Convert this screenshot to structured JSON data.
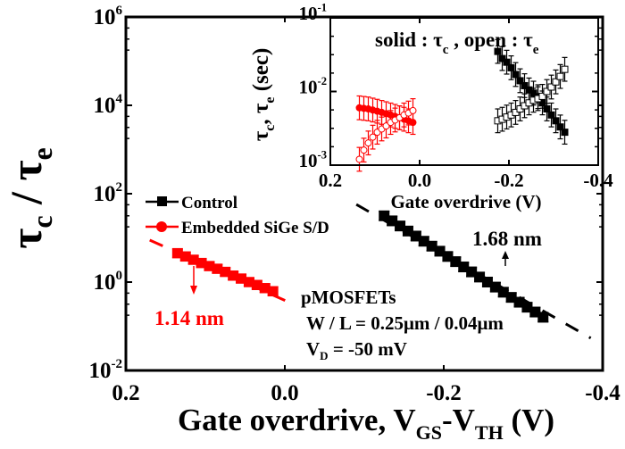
{
  "chart_data": [
    {
      "type": "scatter",
      "xlabel": {
        "main": "Gate overdrive, V",
        "sub1": "GS",
        "mid": "-V",
        "sub2": "TH",
        "end": " (V)"
      },
      "ylabel": {
        "tau1": "τ",
        "sub1": "c",
        "slash": " / ",
        "tau2": "τ",
        "sub2": "e"
      },
      "xlim": [
        0.2,
        -0.4
      ],
      "ylim": [
        0.01,
        1000000
      ],
      "yscale": "log",
      "xticks": [
        "0.2",
        "0.0",
        "-0.2",
        "-0.4"
      ],
      "xtick_values": [
        0.2,
        0.0,
        -0.2,
        -0.4
      ],
      "yticks": [
        {
          "base": "10",
          "exp": "6"
        },
        {
          "base": "10",
          "exp": "4"
        },
        {
          "base": "10",
          "exp": "2"
        },
        {
          "base": "10",
          "exp": "0"
        },
        {
          "base": "10",
          "exp": "-2"
        }
      ],
      "ytick_values": [
        1000000,
        10000,
        100,
        1,
        0.01
      ],
      "legend_placement": "left-middle",
      "series": [
        {
          "name": "Control",
          "color": "#000000",
          "marker": "square",
          "x": [
            -0.125,
            -0.135,
            -0.145,
            -0.155,
            -0.165,
            -0.175,
            -0.185,
            -0.195,
            -0.205,
            -0.215,
            -0.225,
            -0.235,
            -0.245,
            -0.255,
            -0.265,
            -0.275,
            -0.285,
            -0.295,
            -0.305,
            -0.315,
            -0.325
          ],
          "y": [
            31.6,
            24.3,
            18.6,
            14.3,
            11.0,
            8.4,
            6.5,
            5.0,
            3.8,
            2.9,
            2.2,
            1.7,
            1.3,
            1.0,
            0.77,
            0.59,
            0.45,
            0.35,
            0.27,
            0.21,
            0.16
          ]
        },
        {
          "name": "Embedded SiGe S/D",
          "color": "#ff0000",
          "marker": "circle",
          "x": [
            0.135,
            0.125,
            0.115,
            0.105,
            0.095,
            0.085,
            0.075,
            0.065,
            0.055,
            0.045,
            0.035,
            0.025,
            0.015
          ],
          "y": [
            4.5,
            3.8,
            3.2,
            2.7,
            2.3,
            2.0,
            1.7,
            1.4,
            1.2,
            1.0,
            0.86,
            0.73,
            0.62
          ]
        }
      ],
      "fit_lines": [
        {
          "color": "#000000",
          "x": [
            -0.09,
            -0.385
          ],
          "y": [
            57,
            0.054
          ]
        },
        {
          "color": "#ff0000",
          "x": [
            0.17,
            -0.01
          ],
          "y": [
            8.9,
            0.32
          ]
        }
      ],
      "annotations": {
        "red_thickness": "1.14 nm",
        "black_thickness": "1.68 nm",
        "device": "pMOSFETs",
        "wl": "W / L = 0.25μm / 0.04μm",
        "vd_main": "V",
        "vd_sub": "D",
        "vd_rest": " = -50 mV"
      }
    },
    {
      "type": "scatter",
      "title": {
        "p1": "solid : τ",
        "s1": "c",
        "p2": " , open : τ",
        "s2": "e"
      },
      "xlabel": "Gate overdrive (V)",
      "ylabel": {
        "t1": "τ",
        "s1": "c",
        "c": ", τ",
        "s2": "e",
        "rest": " (sec)"
      },
      "xlim": [
        0.2,
        -0.4
      ],
      "ylim": [
        0.001,
        0.1
      ],
      "yscale": "log",
      "xticks": [
        "0.2",
        "0.0",
        "-0.2",
        "-0.4"
      ],
      "xtick_values": [
        0.2,
        0.0,
        -0.2,
        -0.4
      ],
      "yticks": [
        {
          "base": "10",
          "exp": "-1"
        },
        {
          "base": "10",
          "exp": "-2"
        },
        {
          "base": "10",
          "exp": "-3"
        }
      ],
      "ytick_values": [
        0.1,
        0.01,
        0.001
      ],
      "series": [
        {
          "color": "#ff0000",
          "marker": "circle",
          "fill": "solid",
          "x": [
            0.135,
            0.125,
            0.115,
            0.105,
            0.095,
            0.085,
            0.075,
            0.065,
            0.055,
            0.045,
            0.035,
            0.025,
            0.015
          ],
          "y": [
            0.006,
            0.0059,
            0.0058,
            0.0056,
            0.0054,
            0.0052,
            0.005,
            0.0048,
            0.0046,
            0.0044,
            0.0042,
            0.004,
            0.0038
          ]
        },
        {
          "color": "#ff0000",
          "marker": "circle",
          "fill": "open",
          "x": [
            0.135,
            0.125,
            0.115,
            0.105,
            0.095,
            0.085,
            0.075,
            0.065,
            0.055,
            0.045,
            0.035,
            0.025,
            0.015
          ],
          "y": [
            0.0012,
            0.0016,
            0.002,
            0.0024,
            0.0028,
            0.0031,
            0.0034,
            0.0038,
            0.0041,
            0.0044,
            0.0048,
            0.0051,
            0.0055
          ]
        },
        {
          "color": "#000000",
          "marker": "square",
          "fill": "solid",
          "x": [
            -0.175,
            -0.185,
            -0.195,
            -0.205,
            -0.215,
            -0.225,
            -0.235,
            -0.245,
            -0.255,
            -0.265,
            -0.275,
            -0.285,
            -0.295,
            -0.305,
            -0.315,
            -0.325
          ],
          "y": [
            0.035,
            0.028,
            0.025,
            0.021,
            0.017,
            0.014,
            0.012,
            0.0105,
            0.0095,
            0.0085,
            0.007,
            0.0058,
            0.0048,
            0.004,
            0.0033,
            0.0028
          ]
        },
        {
          "color": "#000000",
          "marker": "square",
          "fill": "open",
          "x": [
            -0.175,
            -0.185,
            -0.195,
            -0.205,
            -0.215,
            -0.225,
            -0.235,
            -0.245,
            -0.255,
            -0.265,
            -0.275,
            -0.285,
            -0.295,
            -0.305,
            -0.315,
            -0.325
          ],
          "y": [
            0.004,
            0.0042,
            0.0045,
            0.0048,
            0.0052,
            0.0058,
            0.0064,
            0.007,
            0.0076,
            0.008,
            0.0086,
            0.01,
            0.0115,
            0.0135,
            0.016,
            0.02
          ]
        }
      ]
    }
  ]
}
